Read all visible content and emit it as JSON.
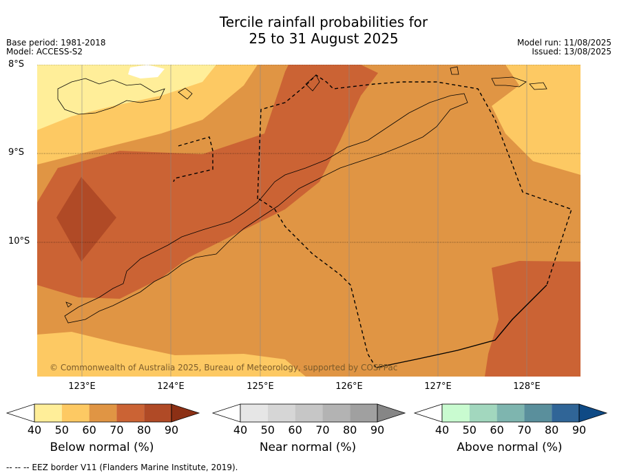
{
  "title_line1": "Tercile rainfall probabilities for",
  "title_line2": "25 to 31 August 2025",
  "meta": {
    "base_period": "Base period: 1981-2018",
    "model": "Model: ACCESS-S2",
    "model_run": "Model run: 11/08/2025",
    "issued": "Issued: 13/08/2025"
  },
  "map": {
    "lat_labels": [
      "8°S",
      "9°S",
      "10°S"
    ],
    "lon_labels": [
      "123°E",
      "124°E",
      "125°E",
      "126°E",
      "127°E",
      "128°E"
    ],
    "copyright": "© Commonwealth of Australia 2025, Bureau of Meteorology, supported by COSPPac"
  },
  "colorbars": [
    {
      "label": "Below normal (%)",
      "ticks": [
        "40",
        "50",
        "60",
        "70",
        "80",
        "90"
      ],
      "colors": [
        "#ffffff",
        "#ffee99",
        "#fdc963",
        "#e09544",
        "#cb6334",
        "#b04a26",
        "#8c3015"
      ]
    },
    {
      "label": "Near normal (%)",
      "ticks": [
        "40",
        "50",
        "60",
        "70",
        "80",
        "90"
      ],
      "colors": [
        "#ffffff",
        "#e6e6e6",
        "#d6d6d6",
        "#c6c6c6",
        "#b3b3b3",
        "#a0a0a0",
        "#868686"
      ]
    },
    {
      "label": "Above normal (%)",
      "ticks": [
        "40",
        "50",
        "60",
        "70",
        "80",
        "90"
      ],
      "colors": [
        "#ffffff",
        "#c9fbd0",
        "#a2d7be",
        "#7eb5af",
        "#5a8f9c",
        "#306597",
        "#0f4a85"
      ]
    }
  ],
  "eez_legend": "--  --  -- EEZ border V11 (Flanders Marine Institute, 2019)."
}
